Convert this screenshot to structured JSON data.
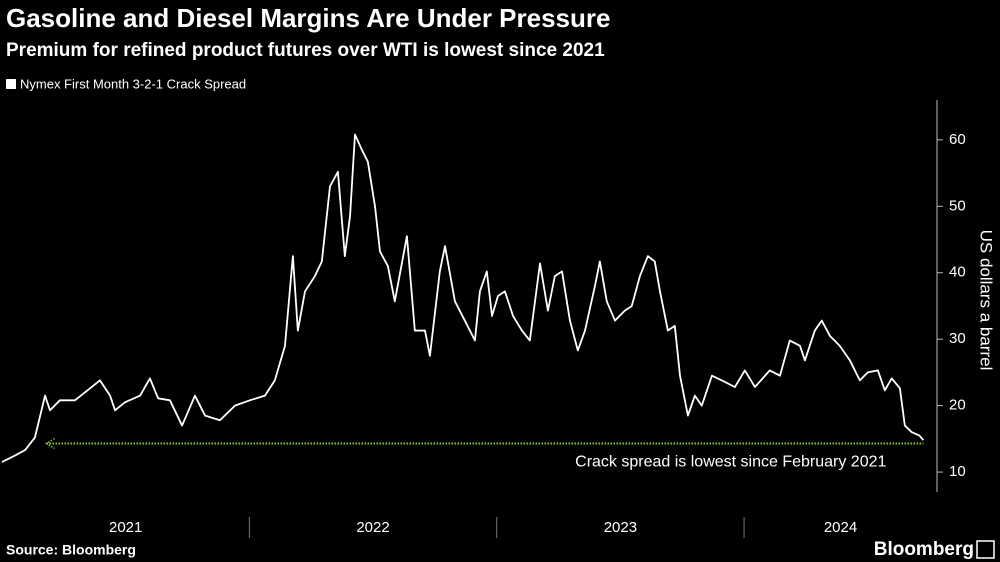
{
  "chart_data": {
    "type": "line",
    "title": "Gasoline and Diesel Margins Are Under Pressure",
    "subtitle": "Premium for refined product futures over WTI is lowest since 2021",
    "y_label": "US dollars a barrel",
    "y_axis_side": "right",
    "legend": "top-left",
    "source": "Source: Bloomberg",
    "logo": "Bloomberg",
    "x": [
      2021.0,
      2021.053,
      2021.093,
      2021.133,
      2021.174,
      2021.194,
      2021.234,
      2021.295,
      2021.356,
      2021.396,
      2021.437,
      2021.457,
      2021.497,
      2021.558,
      2021.598,
      2021.631,
      2021.679,
      2021.728,
      2021.78,
      2021.821,
      2021.881,
      2021.942,
      2022.002,
      2022.063,
      2022.103,
      2022.144,
      2022.176,
      2022.196,
      2022.225,
      2022.265,
      2022.293,
      2022.326,
      2022.358,
      2022.386,
      2022.407,
      2022.427,
      2022.455,
      2022.479,
      2022.508,
      2022.528,
      2022.56,
      2022.588,
      2022.637,
      2022.669,
      2022.71,
      2022.73,
      2022.77,
      2022.791,
      2022.831,
      2022.871,
      2022.912,
      2022.932,
      2022.96,
      2022.981,
      2023.005,
      2023.033,
      2023.066,
      2023.102,
      2023.134,
      2023.175,
      2023.207,
      2023.235,
      2023.264,
      2023.296,
      2023.328,
      2023.357,
      2023.397,
      2023.417,
      2023.445,
      2023.478,
      2023.518,
      2023.546,
      2023.579,
      2023.611,
      2023.639,
      2023.66,
      2023.692,
      2023.72,
      2023.741,
      2023.773,
      2023.801,
      2023.829,
      2023.87,
      2023.91,
      2023.963,
      2024.003,
      2024.044,
      2024.104,
      2024.145,
      2024.185,
      2024.226,
      2024.246,
      2024.286,
      2024.314,
      2024.347,
      2024.387,
      2024.428,
      2024.468,
      2024.5,
      2024.541,
      2024.569,
      2024.597,
      2024.63,
      2024.65,
      2024.678,
      2024.709,
      2024.725
    ],
    "series": [
      {
        "name": "Nymex First Month 3-2-1 Crack Spread",
        "color": "#ffffff",
        "values": [
          11.5,
          12.5,
          13.3,
          15.2,
          21.5,
          19.3,
          20.8,
          20.8,
          22.6,
          23.8,
          21.5,
          19.3,
          20.5,
          21.5,
          24.1,
          21.1,
          20.8,
          17,
          21.5,
          18.5,
          17.8,
          20,
          20.8,
          21.5,
          23.8,
          29,
          42.5,
          31.3,
          37.2,
          39.5,
          41.7,
          53,
          55.2,
          42.5,
          48.5,
          60.8,
          58.5,
          56.7,
          50,
          43.2,
          41,
          35.7,
          45.5,
          31.3,
          31.3,
          27.5,
          40.2,
          44,
          35.7,
          32.8,
          29.8,
          37.2,
          40.2,
          33.5,
          36.5,
          37.2,
          33.5,
          31.3,
          29.8,
          41.4,
          34.3,
          39.5,
          40.2,
          32.8,
          28.3,
          31.3,
          38,
          41.7,
          35.7,
          32.8,
          34.3,
          35,
          39.5,
          42.5,
          41.7,
          37.2,
          31.3,
          32,
          24.5,
          18.5,
          21.5,
          20,
          24.5,
          23.8,
          22.8,
          25.3,
          22.8,
          25.3,
          24.5,
          29.8,
          29,
          26.8,
          31.3,
          32.8,
          30.5,
          29,
          26.8,
          23.8,
          25,
          25.3,
          22.3,
          24.1,
          22.6,
          17,
          16,
          15.5,
          14.8
        ]
      }
    ],
    "xlim": [
      2021,
      2024.78
    ],
    "xticks": [
      {
        "value": 2021,
        "label": "2021"
      },
      {
        "value": 2022,
        "label": "2022"
      },
      {
        "value": 2023,
        "label": "2023"
      },
      {
        "value": 2024,
        "label": "2024"
      }
    ],
    "ylim": [
      7,
      66
    ],
    "yticks": [
      10,
      20,
      30,
      40,
      50,
      60
    ],
    "reference_line": {
      "value": 14.3,
      "from": 2021.18,
      "to": 2024.725,
      "color": "#7ed321",
      "label": "Crack spread is lowest since February 2021"
    }
  }
}
